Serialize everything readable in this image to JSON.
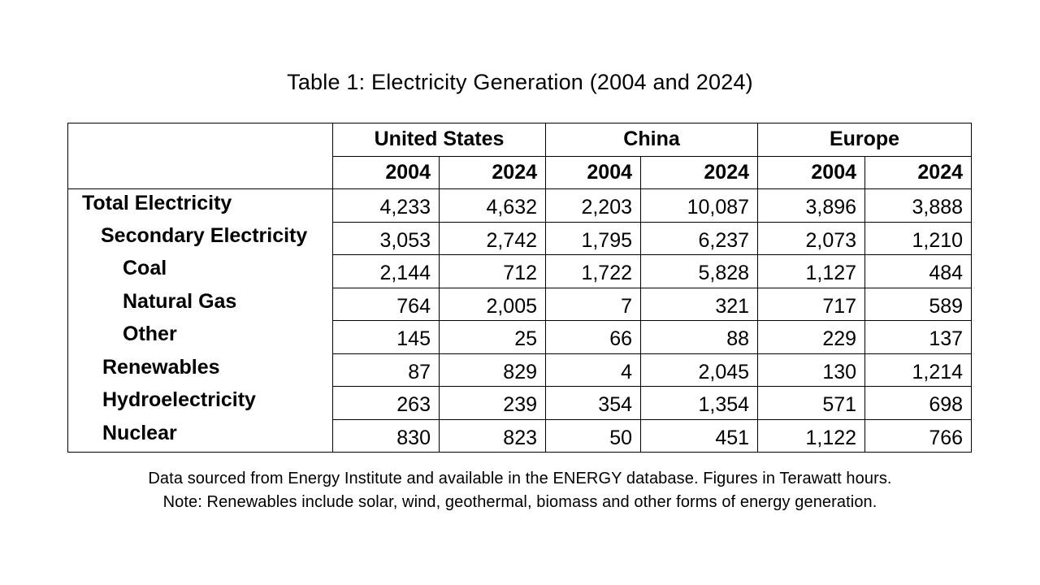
{
  "title": "Table 1: Electricity Generation (2004 and 2024)",
  "table": {
    "regions": [
      "United States",
      "China",
      "Europe"
    ],
    "years": [
      "2004",
      "2024",
      "2004",
      "2024",
      "2004",
      "2024"
    ],
    "rows": [
      {
        "label": "Total Electricity",
        "values": [
          "4,233",
          "4,632",
          "2,203",
          "10,087",
          "3,896",
          "3,888"
        ]
      },
      {
        "label": "Secondary Electricity",
        "values": [
          "3,053",
          "2,742",
          "1,795",
          "6,237",
          "2,073",
          "1,210"
        ]
      },
      {
        "label": "Coal",
        "values": [
          "2,144",
          "712",
          "1,722",
          "5,828",
          "1,127",
          "484"
        ]
      },
      {
        "label": "Natural Gas",
        "values": [
          "764",
          "2,005",
          "7",
          "321",
          "717",
          "589"
        ]
      },
      {
        "label": "Other",
        "values": [
          "145",
          "25",
          "66",
          "88",
          "229",
          "137"
        ]
      },
      {
        "label": "Renewables",
        "values": [
          "87",
          "829",
          "4",
          "2,045",
          "130",
          "1,214"
        ]
      },
      {
        "label": "Hydroelectricity",
        "values": [
          "263",
          "239",
          "354",
          "1,354",
          "571",
          "698"
        ]
      },
      {
        "label": "Nuclear",
        "values": [
          "830",
          "823",
          "50",
          "451",
          "1,122",
          "766"
        ]
      }
    ]
  },
  "notes": {
    "source": "Data sourced from Energy Institute and available in the ENERGY database. Figures in Terawatt hours.",
    "renewables": "Note: Renewables include solar, wind, geothermal, biomass and other forms of energy generation."
  }
}
